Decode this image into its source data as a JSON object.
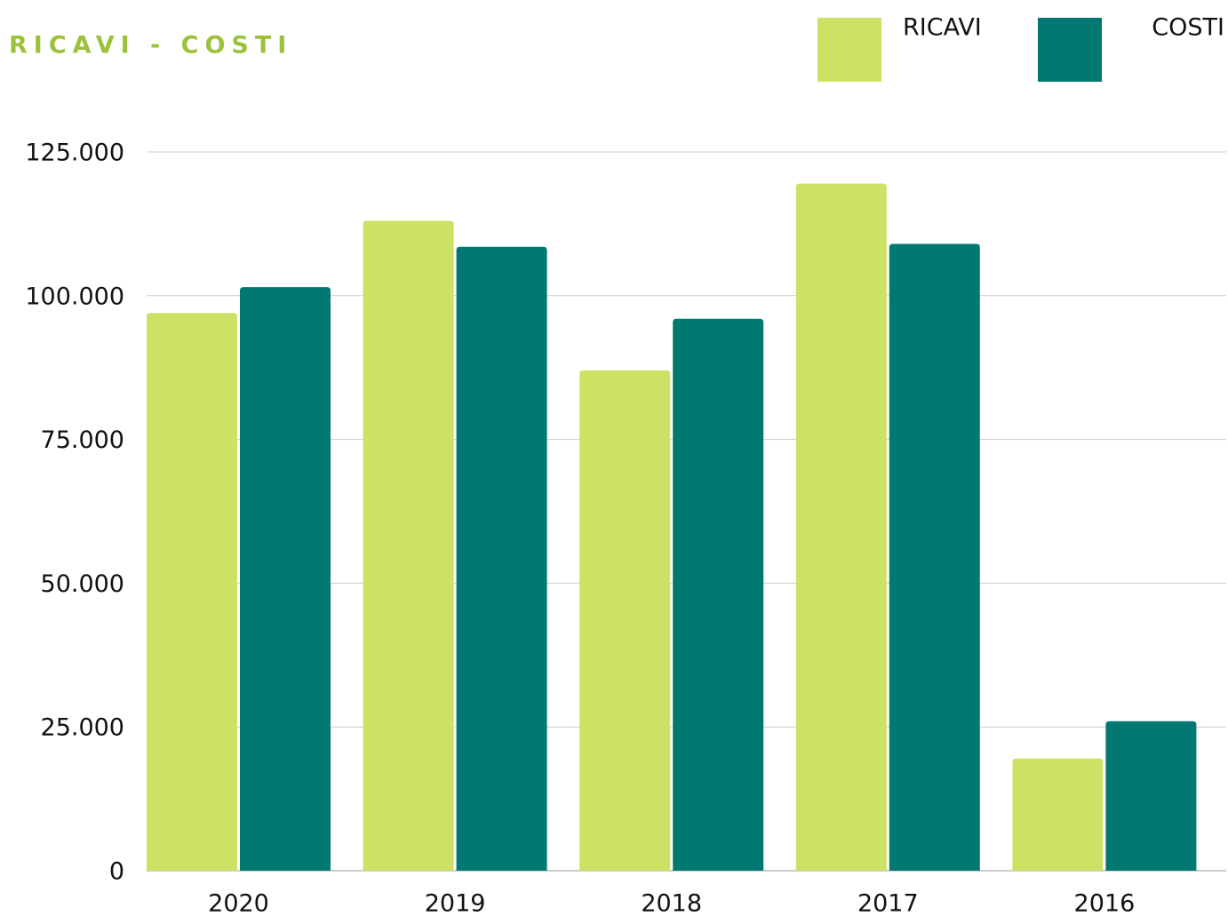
{
  "chart_data": {
    "type": "bar",
    "title": "RICAVI - COSTI",
    "categories": [
      "2020",
      "2019",
      "2018",
      "2017",
      "2016"
    ],
    "series": [
      {
        "name": "RICAVI",
        "color": "#cbe265",
        "values": [
          97000,
          113000,
          87000,
          119500,
          19500
        ]
      },
      {
        "name": "COSTI",
        "color": "#027872",
        "values": [
          101500,
          108500,
          96000,
          109000,
          26000
        ]
      }
    ],
    "ylim": [
      0,
      125000
    ],
    "yticks": [
      0,
      {
        "value": 25000,
        "label": "25.000"
      },
      {
        "value": 50000,
        "label": "50.000"
      },
      {
        "value": 75000,
        "label": "75.000"
      },
      {
        "value": 100000,
        "label": "100.000"
      },
      {
        "value": 125000,
        "label": "125.000"
      }
    ],
    "grid": true,
    "legend": "top-right"
  }
}
